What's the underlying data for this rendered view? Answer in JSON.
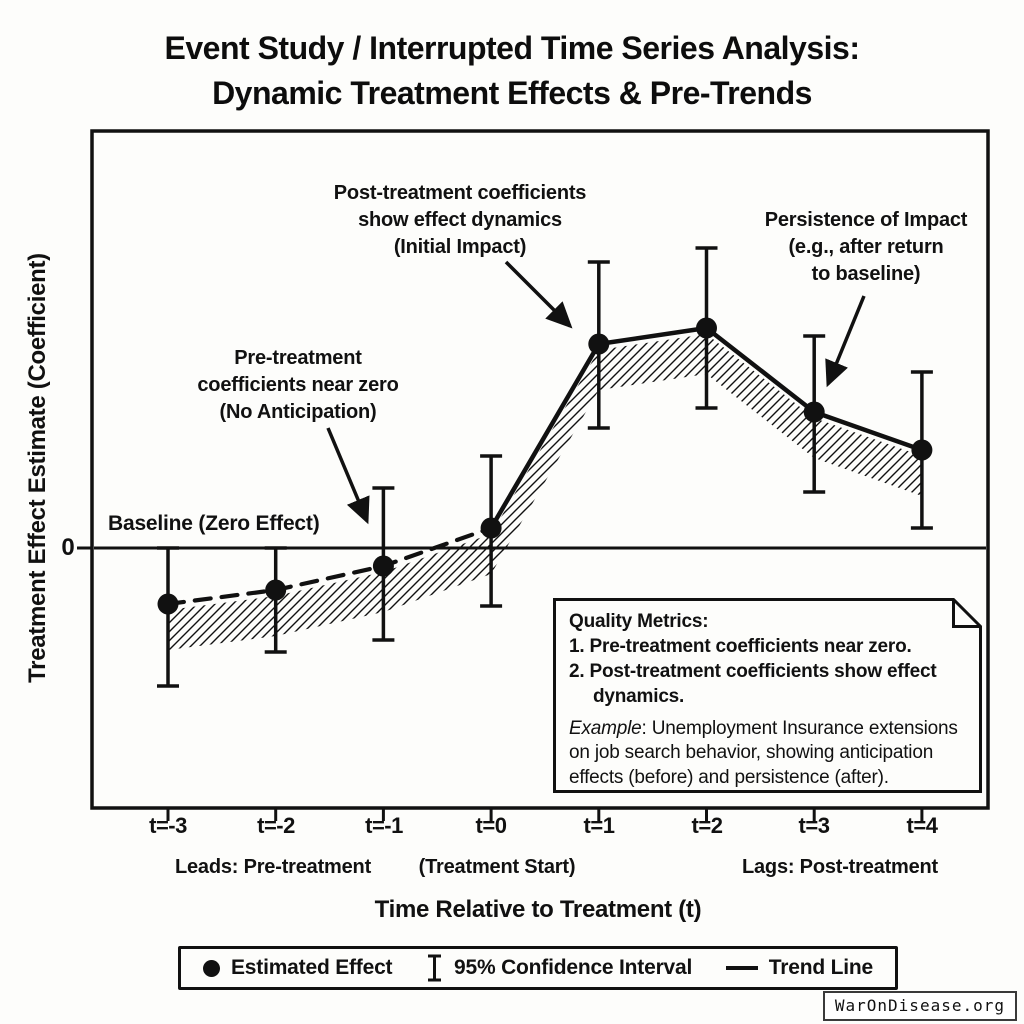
{
  "page": {
    "title_line1": "Event Study / Interrupted Time Series Analysis:",
    "title_line2": "Dynamic Treatment Effects & Pre-Trends",
    "watermark": "WarOnDisease.org"
  },
  "axes": {
    "y_label": "Treatment Effect Estimate (Coefficient)",
    "y_zero_tick": "0",
    "x_label": "Time Relative to Treatment (t)",
    "tick_labels": [
      "t=-3",
      "t=-2",
      "t=-1",
      "t=0",
      "t=1",
      "t=2",
      "t=3",
      "t=4"
    ],
    "group_labels": {
      "leads": "Leads: Pre-treatment",
      "start": "(Treatment Start)",
      "lags": "Lags: Post-treatment"
    }
  },
  "annotations": {
    "pre": "Pre-treatment\ncoefficients near zero\n(No Anticipation)",
    "post": "Post-treatment coefficients\nshow effect dynamics\n(Initial Impact)",
    "persistence": "Persistence of Impact\n(e.g., after return\nto baseline)",
    "baseline": "Baseline (Zero Effect)"
  },
  "note": {
    "heading": "Quality Metrics:",
    "items": [
      "1. Pre-treatment coefficients near zero.",
      "2. Post-treatment coefficients show effect dynamics."
    ],
    "example_lead": "Example",
    "example_rest": ": Unemployment Insurance extensions on job search behavior, showing anticipation effects (before) and persistence (after)."
  },
  "legend": {
    "estimated_effect": "Estimated Effect",
    "confidence_interval": "95% Confidence Interval",
    "trend_line": "Trend Line"
  },
  "colors": {
    "ink": "#111111",
    "background": "#fdfdfb"
  },
  "chart_data": {
    "type": "scatter",
    "title": "Event Study / Interrupted Time Series Analysis: Dynamic Treatment Effects & Pre-Trends",
    "xlabel": "Time Relative to Treatment (t)",
    "ylabel": "Treatment Effect Estimate (Coefficient)",
    "x": [
      -3,
      -2,
      -1,
      0,
      1,
      2,
      3,
      4
    ],
    "x_ticklabels": [
      "t=-3",
      "t=-2",
      "t=-1",
      "t=0",
      "t=1",
      "t=2",
      "t=3",
      "t=4"
    ],
    "series": [
      {
        "name": "Estimated Effect",
        "values": [
          -0.28,
          -0.21,
          -0.09,
          0.1,
          1.02,
          1.1,
          0.68,
          0.49
        ]
      }
    ],
    "ci_lower": [
      -0.69,
      -0.52,
      -0.46,
      -0.29,
      0.6,
      0.7,
      0.28,
      0.1
    ],
    "ci_upper": [
      0.0,
      0.0,
      0.3,
      0.46,
      1.43,
      1.5,
      1.06,
      0.88
    ],
    "baseline": 0,
    "treatment_start_index": 3,
    "pre_trend_style": "dashed",
    "post_trend_style": "solid",
    "grid": false,
    "legend_position": "bottom",
    "ylim": [
      -1.3,
      2.1
    ]
  }
}
